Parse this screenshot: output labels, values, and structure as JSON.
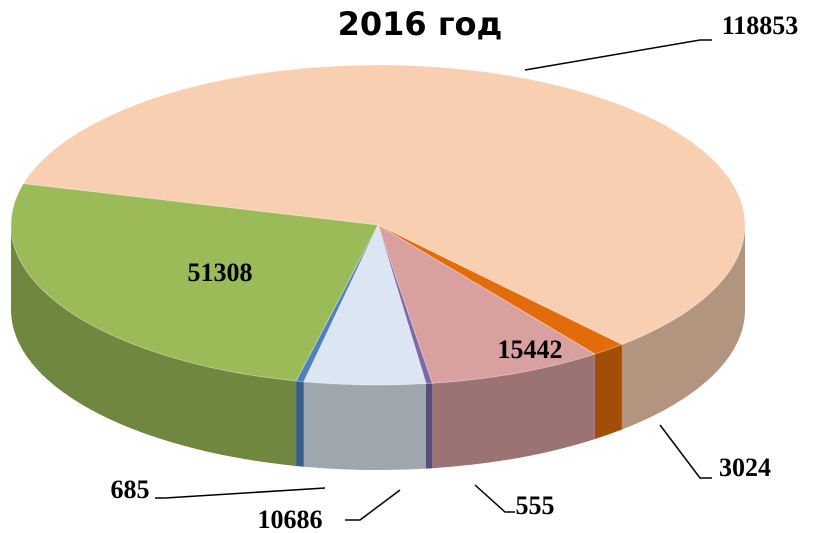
{
  "chart_data": {
    "type": "pie3d",
    "title": "2016 год",
    "values": [
      118853,
      3024,
      15442,
      555,
      10686,
      685,
      51308
    ],
    "colors": [
      "#f8cfb0",
      "#e36c0a",
      "#d9a0a0",
      "#7f6aa8",
      "#dce6f2",
      "#4f81bd",
      "#9bbb59"
    ]
  }
}
